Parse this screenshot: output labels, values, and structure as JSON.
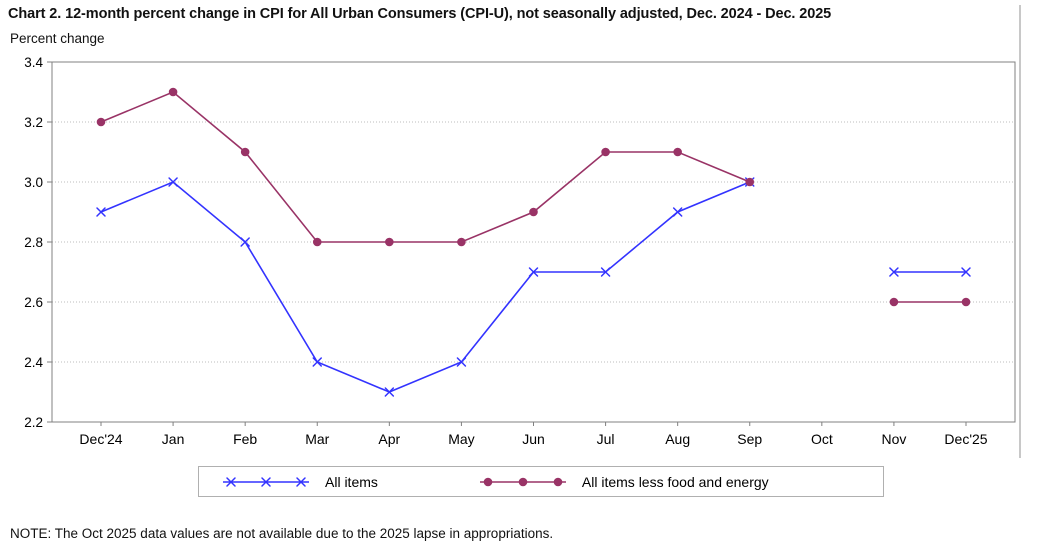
{
  "title": "Chart 2. 12-month percent change in CPI for All Urban Consumers (CPI-U), not seasonally adjusted, Dec. 2024 - Dec. 2025",
  "axis_unit_label": "Percent change",
  "note": "NOTE: The Oct 2025 data values are not available due to the 2025 lapse in appropriations.",
  "colors": {
    "all_items": "#3333ff",
    "all_items_less_food_energy": "#993366",
    "gridline": "#bcbcbc",
    "axis": "#808080",
    "frame": "#909090",
    "text": "#000000"
  },
  "chart_data": {
    "type": "line",
    "title": "Chart 2. 12-month percent change in CPI for All Urban Consumers (CPI-U), not seasonally adjusted, Dec. 2024 - Dec. 2025",
    "ylabel": "Percent change",
    "xlabel": "",
    "categories": [
      "Dec'24",
      "Jan",
      "Feb",
      "Mar",
      "Apr",
      "May",
      "Jun",
      "Jul",
      "Aug",
      "Sep",
      "Oct",
      "Nov",
      "Dec'25"
    ],
    "series": [
      {
        "name": "All items",
        "marker": "x",
        "color": "#3333ff",
        "values": [
          2.9,
          3.0,
          2.8,
          2.4,
          2.3,
          2.4,
          2.7,
          2.7,
          2.9,
          3.0,
          null,
          2.7,
          2.7
        ]
      },
      {
        "name": "All items less food and energy",
        "marker": "circle",
        "color": "#993366",
        "values": [
          3.2,
          3.3,
          3.1,
          2.8,
          2.8,
          2.8,
          2.9,
          3.1,
          3.1,
          3.0,
          null,
          2.6,
          2.6
        ]
      }
    ],
    "ylim": [
      2.2,
      3.4
    ],
    "ytick_step": 0.2,
    "grid": true,
    "grid_style": "dotted",
    "legend_position": "bottom",
    "missing_data_note": "Oct 2025 values not available"
  }
}
